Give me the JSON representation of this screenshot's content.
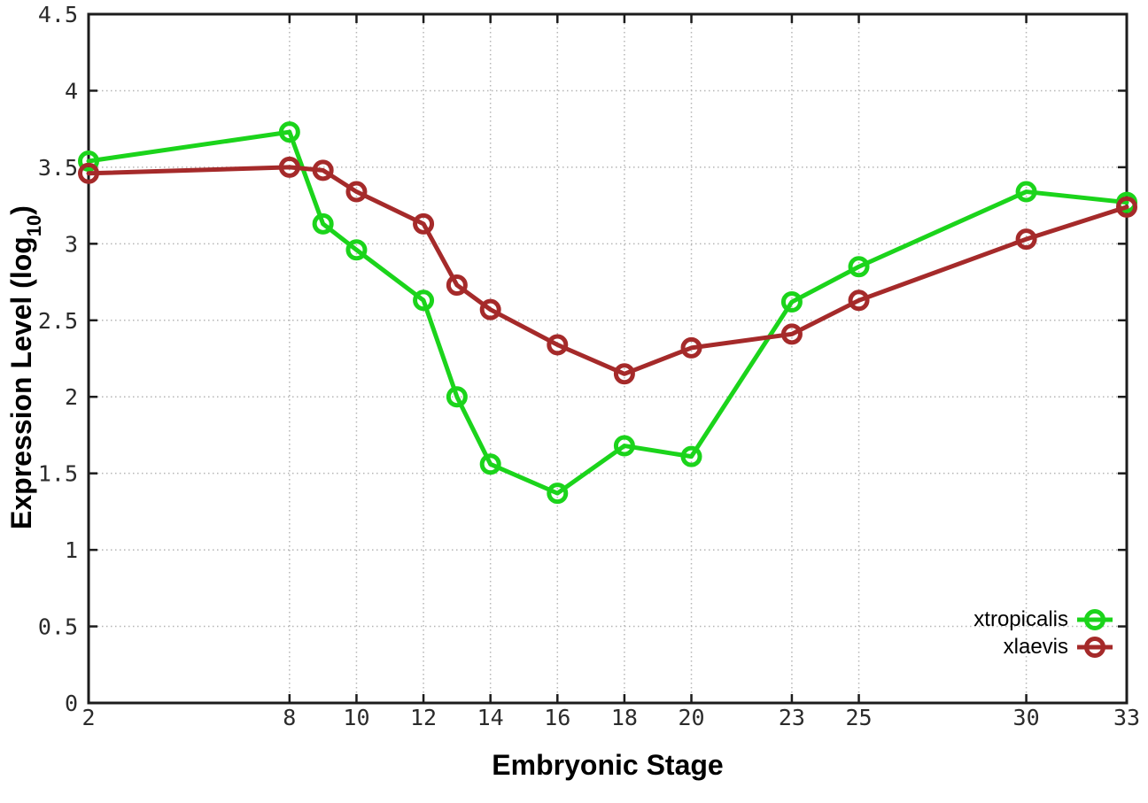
{
  "figure": {
    "x_axis_title": "Embryonic Stage",
    "y_axis_title_main": "Expression Level (log",
    "y_axis_title_sub": "10",
    "y_axis_title_close": ")"
  },
  "axes": {
    "x": {
      "min": 2,
      "max": 33,
      "ticks": [
        2,
        8,
        10,
        12,
        14,
        16,
        18,
        20,
        23,
        25,
        30,
        33
      ],
      "tick_labels": [
        "2",
        "8",
        "10",
        "12",
        "14",
        "16",
        "18",
        "20",
        "23",
        "25",
        "30",
        "33"
      ]
    },
    "y": {
      "min": 0,
      "max": 4.5,
      "ticks": [
        0,
        0.5,
        1,
        1.5,
        2,
        2.5,
        3,
        3.5,
        4,
        4.5
      ],
      "tick_labels": [
        "0",
        "0.5",
        "1",
        "1.5",
        "2",
        "2.5",
        "3",
        "3.5",
        "4",
        "4.5"
      ]
    }
  },
  "legend": [
    {
      "label": "xtropicalis",
      "color": "#1bd41b"
    },
    {
      "label": "xlaevis",
      "color": "#a52a2a"
    }
  ],
  "colors": {
    "grid": "#b5b5b5",
    "border": "#1c1c1c",
    "tick_text": "#2b2b2b",
    "background": "#ffffff"
  },
  "chart_data": {
    "type": "line",
    "x": [
      2,
      8,
      9,
      10,
      12,
      13,
      14,
      16,
      18,
      20,
      23,
      25,
      30,
      33
    ],
    "series": [
      {
        "name": "xtropicalis",
        "color": "#1bd41b",
        "values": [
          3.54,
          3.73,
          3.13,
          2.96,
          2.63,
          2.0,
          1.56,
          1.37,
          1.68,
          1.61,
          2.62,
          2.85,
          3.34,
          3.27
        ]
      },
      {
        "name": "xlaevis",
        "color": "#a52a2a",
        "values": [
          3.46,
          3.5,
          3.48,
          3.34,
          3.13,
          2.73,
          2.57,
          2.34,
          2.15,
          2.32,
          2.41,
          2.63,
          3.03,
          3.24
        ]
      }
    ],
    "title": "",
    "xlabel": "Embryonic Stage",
    "ylabel": "Expression Level (log10)",
    "xlim": [
      2,
      33
    ],
    "ylim": [
      0,
      4.5
    ],
    "grid": true,
    "gridstyle": "dotted",
    "legend_position": "bottom-right",
    "marker": "open-circle",
    "line_width": 5
  }
}
